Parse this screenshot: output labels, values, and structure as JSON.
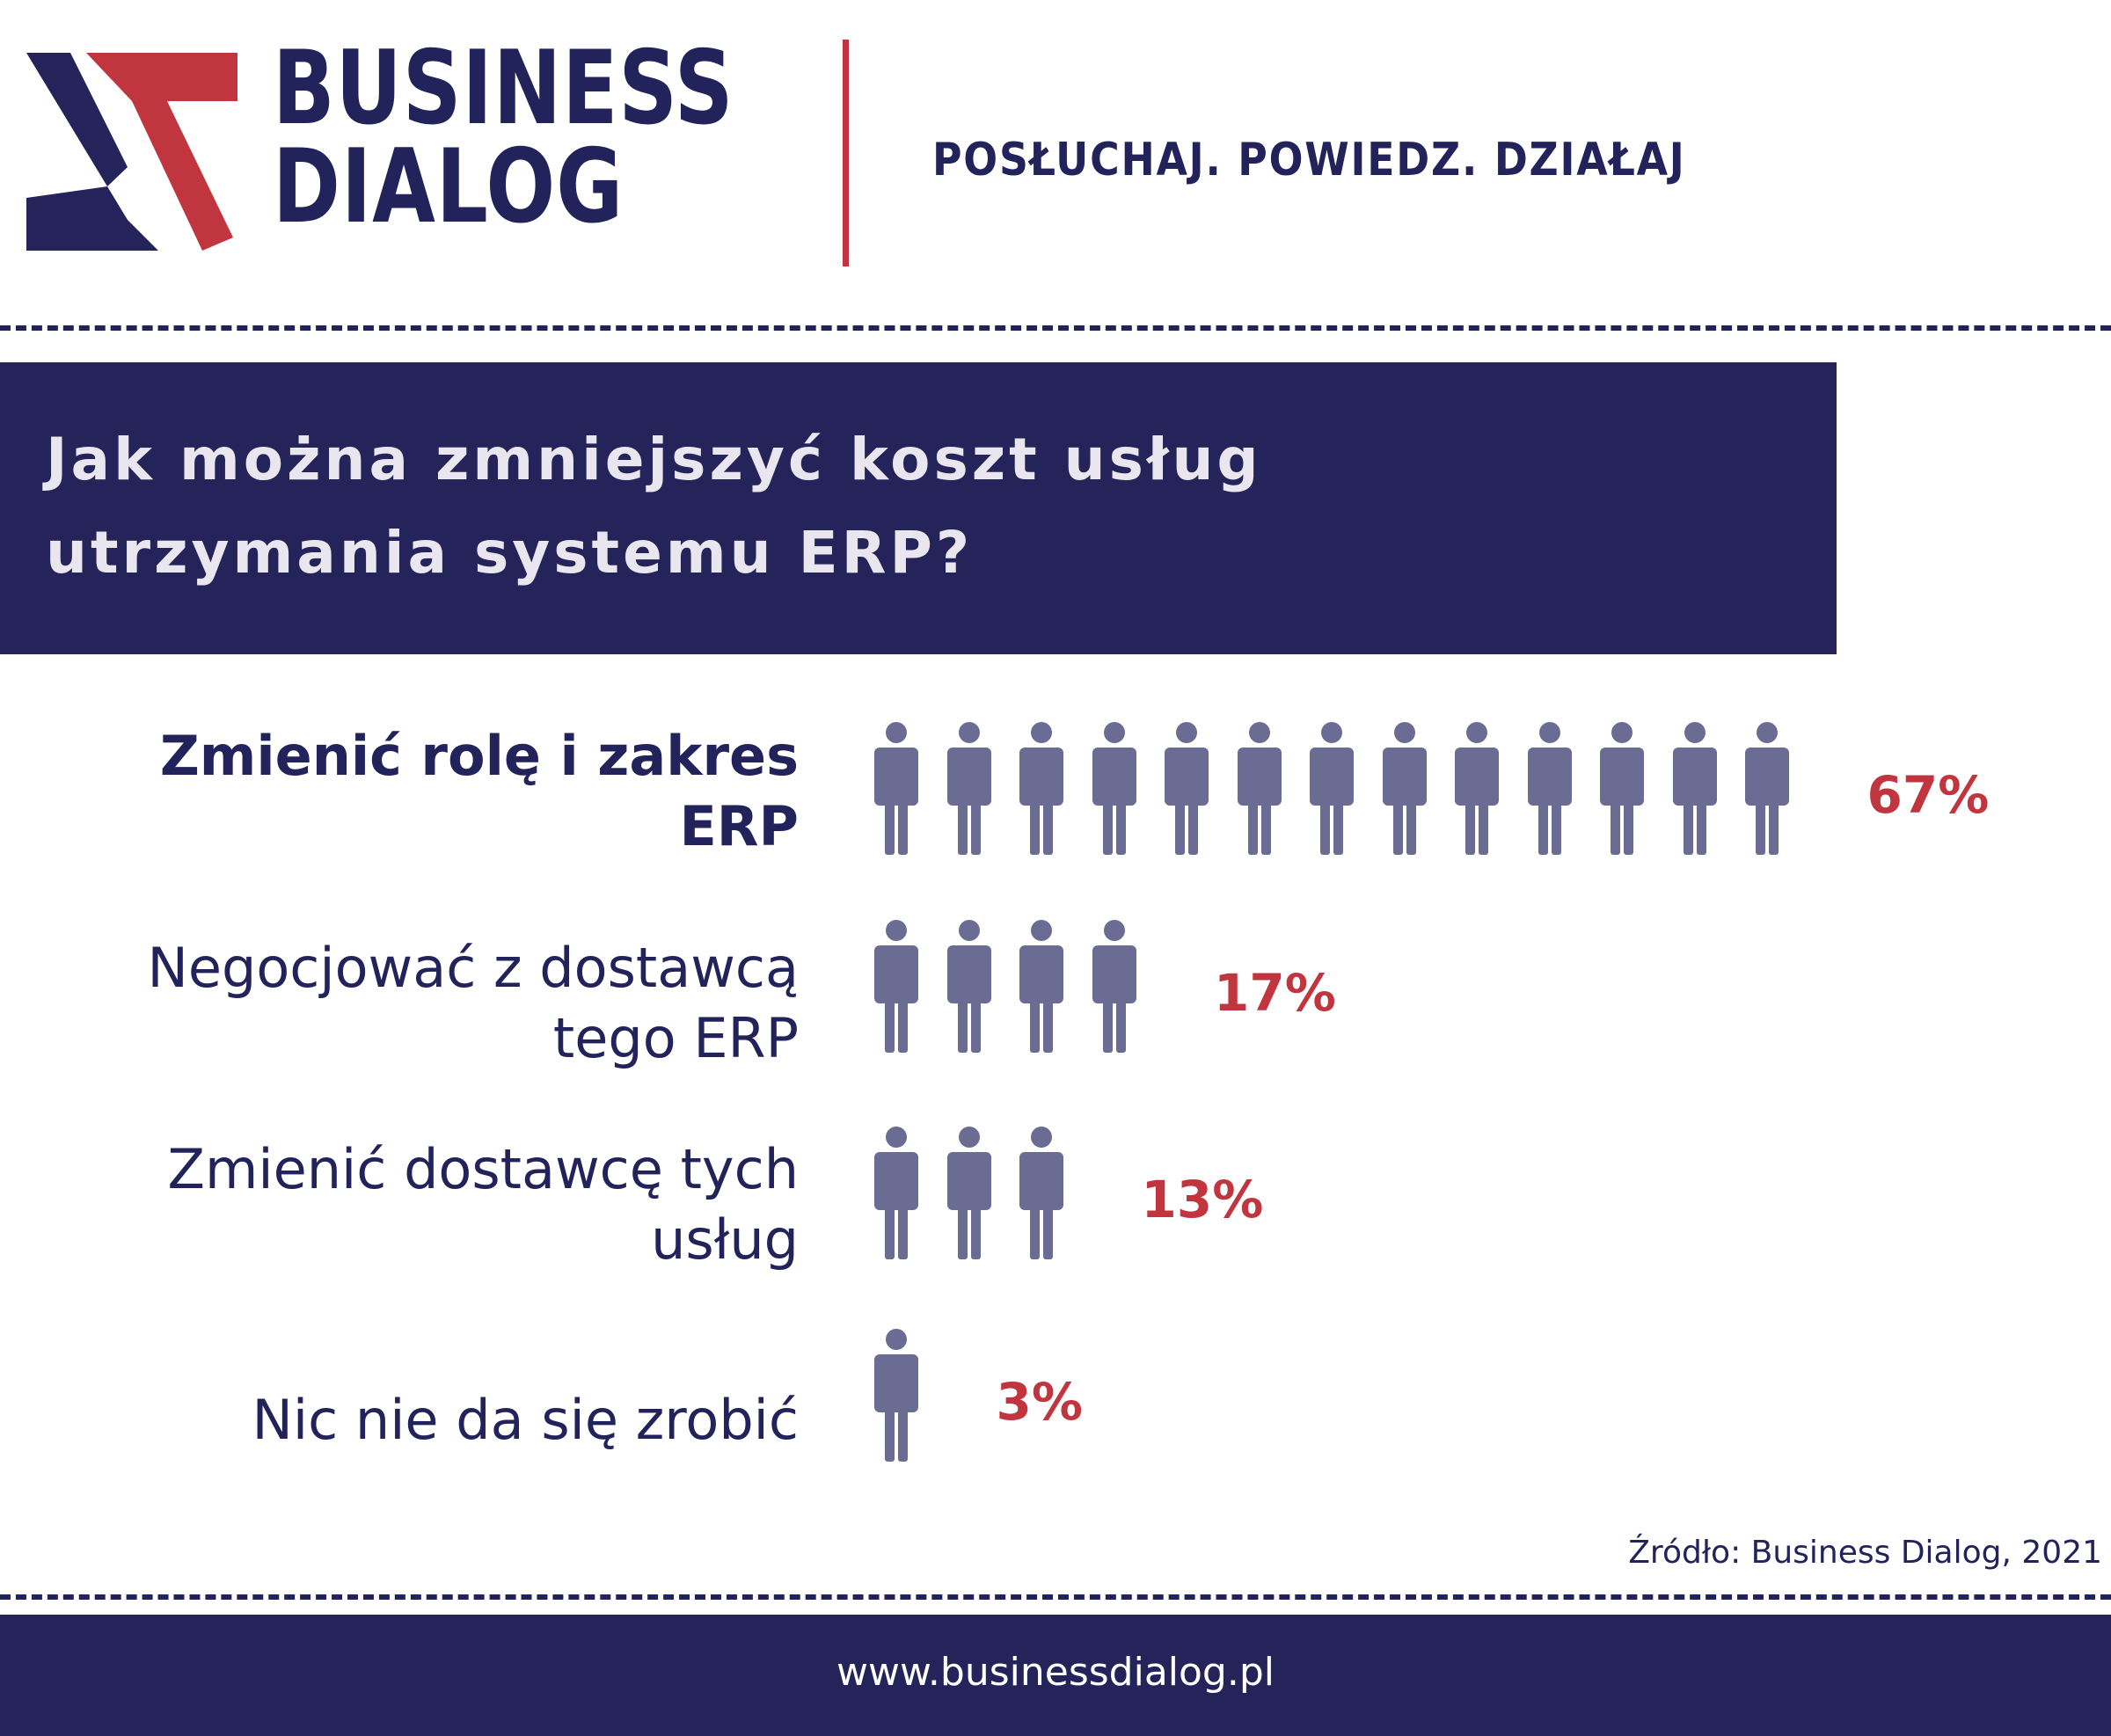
{
  "header": {
    "brand_line1": "BUSINESS",
    "brand_line2": "DIALOG",
    "tagline": "POSŁUCHAJ. POWIEDZ. DZIAŁAJ"
  },
  "colors": {
    "navy": "#24245b",
    "red": "#c1353f",
    "person": "#6b6c94"
  },
  "chart_data": {
    "type": "pictogram",
    "title": "Jak można zmniejszyć koszt usług\nutrzymania systemu ERP?",
    "categories": [
      "Zmienić rolę i zakres\nERP",
      "Negocjować z dostawcą\ntego ERP",
      "Zmienić dostawcę tych\nusług",
      "Nic nie da się zrobić"
    ],
    "values": [
      67,
      17,
      13,
      3
    ],
    "value_labels": [
      "67%",
      "17%",
      "13%",
      "3%"
    ],
    "icon_counts": [
      13,
      4,
      3,
      1
    ],
    "icon": "person-icon",
    "unit": "%"
  },
  "source": "Źródło: Business Dialog, 2021",
  "footer": {
    "url": "www.businessdialog.pl"
  }
}
